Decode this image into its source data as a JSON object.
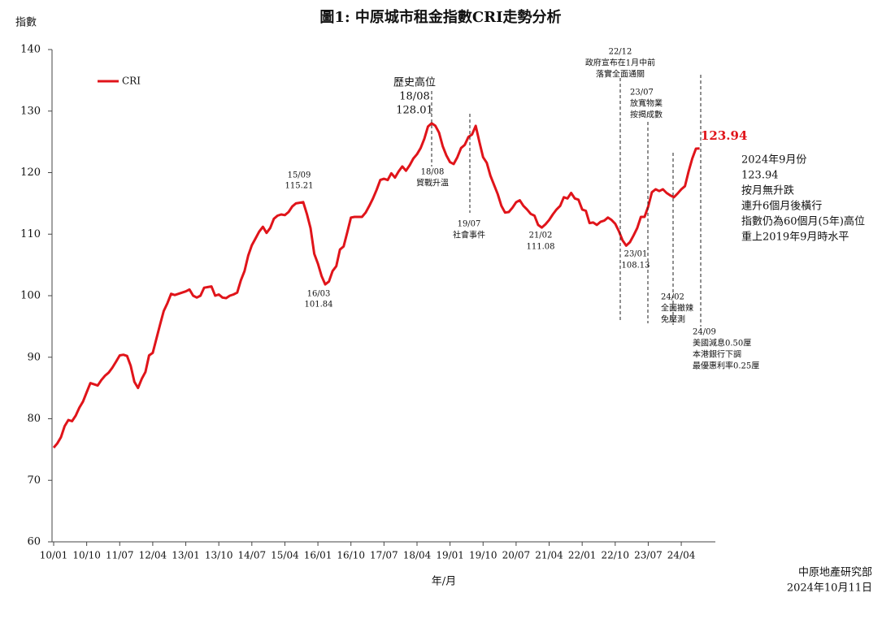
{
  "chart_data": {
    "type": "line",
    "title": "圖1: 中原城市租金指數CRI走勢分析",
    "y_label": "指數",
    "x_label": "年/月",
    "x": [
      "10/01",
      "10/02",
      "10/03",
      "10/04",
      "10/05",
      "10/06",
      "10/07",
      "10/08",
      "10/09",
      "10/10",
      "10/11",
      "10/12",
      "11/01",
      "11/02",
      "11/03",
      "11/04",
      "11/05",
      "11/06",
      "11/07",
      "11/08",
      "11/09",
      "11/10",
      "11/11",
      "11/12",
      "12/01",
      "12/02",
      "12/03",
      "12/04",
      "12/05",
      "12/06",
      "12/07",
      "12/08",
      "12/09",
      "12/10",
      "12/11",
      "12/12",
      "13/01",
      "13/02",
      "13/03",
      "13/04",
      "13/05",
      "13/06",
      "13/07",
      "13/08",
      "13/09",
      "13/10",
      "13/11",
      "13/12",
      "14/01",
      "14/02",
      "14/03",
      "14/04",
      "14/05",
      "14/06",
      "14/07",
      "14/08",
      "14/09",
      "14/10",
      "14/11",
      "14/12",
      "15/01",
      "15/02",
      "15/03",
      "15/04",
      "15/05",
      "15/06",
      "15/07",
      "15/08",
      "15/09",
      "15/10",
      "15/11",
      "15/12",
      "16/01",
      "16/02",
      "16/03",
      "16/04",
      "16/05",
      "16/06",
      "16/07",
      "16/08",
      "16/09",
      "16/10",
      "16/11",
      "16/12",
      "17/01",
      "17/02",
      "17/03",
      "17/04",
      "17/05",
      "17/06",
      "17/07",
      "17/08",
      "17/09",
      "17/10",
      "17/11",
      "17/12",
      "18/01",
      "18/02",
      "18/03",
      "18/04",
      "18/05",
      "18/06",
      "18/07",
      "18/08",
      "18/09",
      "18/10",
      "18/11",
      "18/12",
      "19/01",
      "19/02",
      "19/03",
      "19/04",
      "19/05",
      "19/06",
      "19/07",
      "19/08",
      "19/09",
      "19/10",
      "19/11",
      "19/12",
      "20/01",
      "20/02",
      "20/03",
      "20/04",
      "20/05",
      "20/06",
      "20/07",
      "20/08",
      "20/09",
      "20/10",
      "20/11",
      "20/12",
      "21/01",
      "21/02",
      "21/03",
      "21/04",
      "21/05",
      "21/06",
      "21/07",
      "21/08",
      "21/09",
      "21/10",
      "21/11",
      "21/12",
      "22/01",
      "22/02",
      "22/03",
      "22/04",
      "22/05",
      "22/06",
      "22/07",
      "22/08",
      "22/09",
      "22/10",
      "22/11",
      "22/12",
      "23/01",
      "23/02",
      "23/03",
      "23/04",
      "23/05",
      "23/06",
      "23/07",
      "23/08",
      "23/09",
      "23/10",
      "23/11",
      "23/12",
      "24/01",
      "24/02",
      "24/03",
      "24/04",
      "24/05",
      "24/06",
      "24/07",
      "24/08",
      "24/09"
    ],
    "series": [
      {
        "name": "CRI",
        "color": "#e0141a",
        "values": [
          75.3,
          76,
          77,
          78.8,
          79.8,
          79.6,
          80.5,
          81.8,
          82.8,
          84.3,
          85.8,
          85.6,
          85.4,
          86.3,
          87,
          87.5,
          88.3,
          89.3,
          90.3,
          90.4,
          90.2,
          88.6,
          86,
          85,
          86.5,
          87.6,
          90.3,
          90.7,
          93,
          95.3,
          97.5,
          98.8,
          100.3,
          100.1,
          100.3,
          100.5,
          100.7,
          101,
          100,
          99.7,
          100,
          101.3,
          101.4,
          101.5,
          100,
          100.2,
          99.7,
          99.6,
          100,
          100.2,
          100.5,
          102.5,
          104,
          106.5,
          108.2,
          109.3,
          110.4,
          111.2,
          110.2,
          111,
          112.5,
          113,
          113.2,
          113.1,
          113.6,
          114.5,
          115,
          115.1,
          115.21,
          113.3,
          111,
          106.8,
          105.2,
          103.2,
          101.84,
          102.3,
          104,
          104.8,
          107.5,
          108,
          110.3,
          112.7,
          112.8,
          112.8,
          112.8,
          113.5,
          114.6,
          115.8,
          117.2,
          118.8,
          119,
          118.8,
          119.9,
          119.2,
          120.2,
          121,
          120.3,
          121.2,
          122.3,
          123,
          124,
          125.5,
          127.5,
          128.01,
          127.6,
          126.5,
          124.3,
          122.8,
          121.7,
          121.4,
          122.5,
          124,
          124.5,
          125.8,
          126.2,
          127.6,
          125,
          122.5,
          121.6,
          119.5,
          118,
          116.5,
          114.6,
          113.5,
          113.6,
          114.3,
          115.2,
          115.5,
          114.6,
          114,
          113.3,
          113,
          111.5,
          111.08,
          111.6,
          112.3,
          113.2,
          114,
          114.6,
          116,
          115.8,
          116.7,
          115.8,
          115.6,
          114,
          113.8,
          111.8,
          111.9,
          111.5,
          112,
          112.2,
          112.7,
          112.3,
          111.7,
          110.5,
          109,
          108.13,
          108.7,
          109.8,
          111,
          112.8,
          112.8,
          114.5,
          116.8,
          117.3,
          117,
          117.3,
          116.7,
          116.3,
          116,
          116.6,
          117.3,
          117.8,
          120.2,
          122.3,
          123.9,
          123.94
        ]
      }
    ],
    "xticks": [
      "10/01",
      "10/10",
      "11/07",
      "12/04",
      "13/01",
      "13/10",
      "14/07",
      "15/04",
      "16/01",
      "16/10",
      "17/07",
      "18/04",
      "19/01",
      "19/10",
      "20/07",
      "21/04",
      "22/01",
      "22/10",
      "23/07",
      "24/04"
    ],
    "ylim": [
      60,
      140
    ],
    "yticks": [
      60,
      70,
      80,
      90,
      100,
      110,
      120,
      130,
      140
    ],
    "grid": false,
    "legend": "top-left",
    "annotations": [
      [
        "歷史高位",
        "18/08",
        "128.01"
      ],
      [
        "18/08",
        "貿戰升溫"
      ],
      [
        "15/09",
        "115.21"
      ],
      [
        "16/03",
        "101.84"
      ],
      [
        "19/07",
        "社會事件"
      ],
      [
        "21/02",
        "111.08"
      ],
      [
        "22/12",
        "政府宣布在1月中前",
        "落實全面通關"
      ],
      [
        "23/07",
        "放寬物業",
        "按揭成數"
      ],
      [
        "23/01",
        "108.13"
      ],
      [
        "24/02",
        "全面撤辣",
        "免壓測"
      ],
      [
        "24/09",
        "美國減息0.50厘",
        "本港銀行下調",
        "最優惠利率0.25厘"
      ]
    ],
    "summary": [
      "2024年9月份",
      "123.94",
      "按月無升跌",
      "連升6個月後橫行",
      "指數仍為60個月(5年)高位",
      "重上2019年9月時水平"
    ],
    "source": [
      "中原地產研究部",
      "2024年10月11日"
    ]
  }
}
